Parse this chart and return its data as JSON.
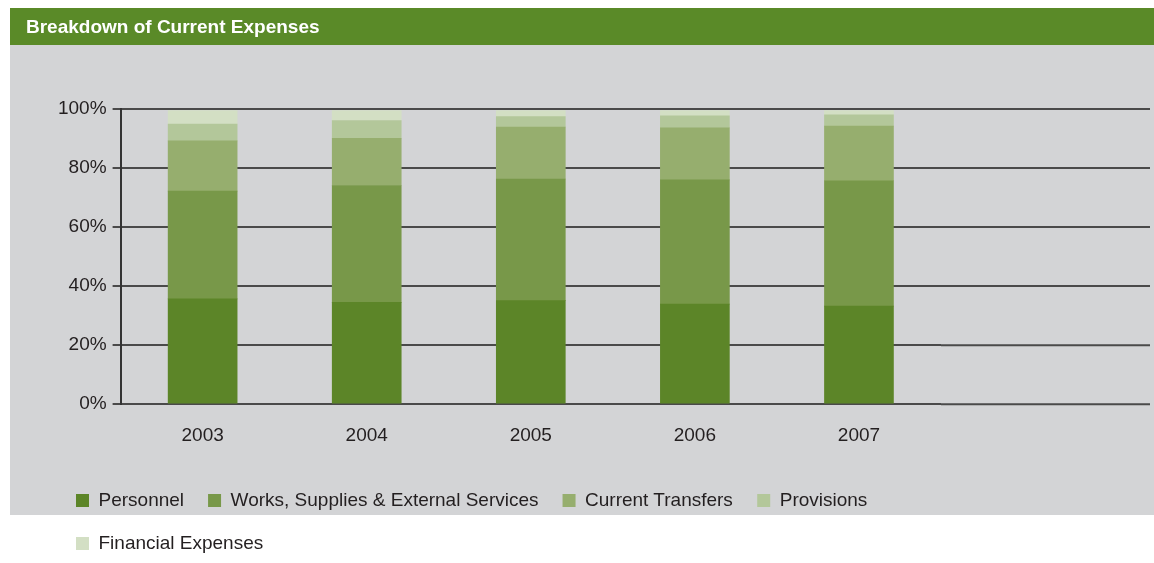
{
  "chart_data": {
    "type": "bar",
    "title": "Breakdown of Current Expenses",
    "stacked": true,
    "categories": [
      "2003",
      "2004",
      "2005",
      "2006",
      "2007"
    ],
    "series": [
      {
        "name": "Personnel",
        "color": "#5c8528",
        "values": [
          35.7,
          34.5,
          35.1,
          33.9,
          33.2
        ]
      },
      {
        "name": "Works, Supplies & External Services",
        "color": "#789849",
        "values": [
          36.5,
          39.6,
          41.2,
          42.1,
          42.5
        ]
      },
      {
        "name": "Current Transfers",
        "color": "#96ae6e",
        "values": [
          17.0,
          16.0,
          17.6,
          17.6,
          18.5
        ]
      },
      {
        "name": "Provisions",
        "color": "#b3c79a",
        "values": [
          5.7,
          6.0,
          3.5,
          4.1,
          3.8
        ]
      },
      {
        "name": "Financial Expenses",
        "color": "#d3dfc4",
        "values": [
          4.6,
          3.4,
          2.1,
          1.8,
          1.5
        ]
      }
    ],
    "ylim": [
      0,
      100
    ],
    "yticks": [
      {
        "value": 0,
        "label": "0%"
      },
      {
        "value": 20,
        "label": "20%"
      },
      {
        "value": 40,
        "label": "40%"
      },
      {
        "value": 60,
        "label": "60%"
      },
      {
        "value": 80,
        "label": "80%"
      },
      {
        "value": 100,
        "label": "100%"
      }
    ],
    "grid": "y",
    "legend": "bottom"
  }
}
